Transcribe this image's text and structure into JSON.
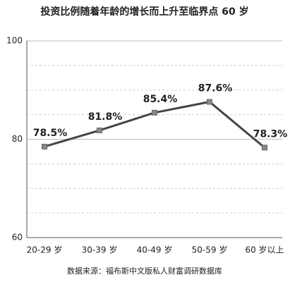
{
  "chart_data": {
    "type": "line",
    "title": "投资比例随着年龄的增长而上升至临界点 60 岁",
    "source": "数据来源：福布斯中文版私人财富调研数据库",
    "categories": [
      "20-29 岁",
      "30-39 岁",
      "40-49 岁",
      "50-59 岁",
      "60 岁以上"
    ],
    "series": [
      {
        "name": "投资比例",
        "color": "#444444",
        "values": [
          78.5,
          81.8,
          85.4,
          87.6,
          78.3
        ],
        "value_labels": [
          "78.5%",
          "81.8%",
          "85.4%",
          "87.6%",
          "78.3%"
        ]
      }
    ],
    "ylim": [
      60,
      100
    ],
    "yticks": [
      60,
      80,
      100
    ],
    "minor_yticks": [
      65,
      70,
      75,
      85,
      90,
      95
    ],
    "grid": true
  }
}
